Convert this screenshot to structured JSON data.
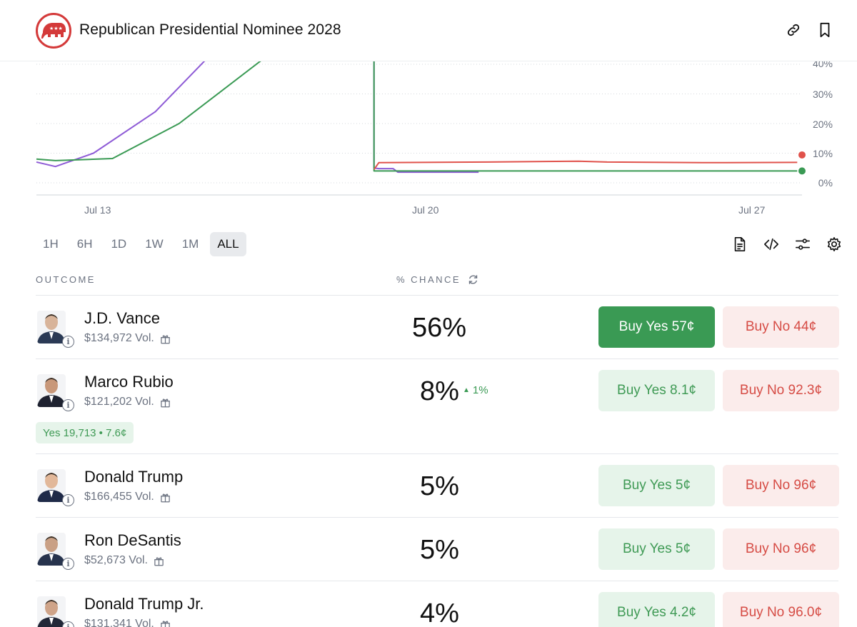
{
  "header": {
    "title": "Republican Presidential Nominee 2028",
    "logo_icon": "gop-elephant-icon",
    "actions": [
      "link-icon",
      "bookmark-icon"
    ]
  },
  "chart_data": {
    "type": "line",
    "y_tick_labels": [
      "40%",
      "30%",
      "20%",
      "10%",
      "0%"
    ],
    "x_tick_labels": [
      "Jul 13",
      "Jul 20",
      "Jul 27"
    ],
    "ylim": [
      0,
      45
    ],
    "grid": true,
    "series": [
      {
        "color": "#8e5bd6",
        "values": [
          [
            0,
            7
          ],
          [
            0.4,
            5.5
          ],
          [
            1.2,
            10
          ],
          [
            2.5,
            24
          ],
          [
            3.6,
            43
          ],
          [
            7.1,
            43
          ],
          [
            7.1,
            5
          ],
          [
            7.2,
            4.8
          ],
          [
            7.5,
            4.8
          ],
          [
            7.6,
            3.6
          ],
          [
            9.3,
            3.6
          ]
        ]
      },
      {
        "color": "#3a9a54",
        "values": [
          [
            0,
            8
          ],
          [
            0.4,
            7.5
          ],
          [
            1.6,
            8.2
          ],
          [
            3.0,
            20
          ],
          [
            4.8,
            43
          ],
          [
            7.1,
            43
          ],
          [
            7.1,
            4
          ],
          [
            16.0,
            4
          ]
        ]
      },
      {
        "color": "#e0524b",
        "values": [
          [
            7.1,
            4.5
          ],
          [
            7.2,
            6.8
          ],
          [
            9.5,
            7
          ],
          [
            11.4,
            7.3
          ],
          [
            12.0,
            7
          ],
          [
            14.0,
            6.8
          ],
          [
            16.0,
            6.9
          ]
        ]
      }
    ]
  },
  "ranges": [
    "1H",
    "6H",
    "1D",
    "1W",
    "1M",
    "ALL"
  ],
  "active_range": "ALL",
  "tools": [
    "document-icon",
    "code-icon",
    "sliders-icon",
    "gear-icon"
  ],
  "table": {
    "col_outcome": "OUTCOME",
    "col_chance": "% CHANCE"
  },
  "outcomes": [
    {
      "name": "J.D. Vance",
      "volume": "$134,972 Vol.",
      "chance": "56%",
      "yes": "Buy Yes 57¢",
      "no": "Buy No 44¢"
    },
    {
      "name": "Marco Rubio",
      "volume": "$121,202 Vol.",
      "chance": "8%",
      "delta": "1%",
      "yes": "Buy Yes 8.1¢",
      "no": "Buy No 92.3¢",
      "position": "Yes 19,713 • 7.6¢"
    },
    {
      "name": "Donald Trump",
      "volume": "$166,455 Vol.",
      "chance": "5%",
      "yes": "Buy Yes 5¢",
      "no": "Buy No 96¢"
    },
    {
      "name": "Ron DeSantis",
      "volume": "$52,673 Vol.",
      "chance": "5%",
      "yes": "Buy Yes 5¢",
      "no": "Buy No 96¢"
    },
    {
      "name": "Donald Trump Jr.",
      "volume": "$131,341 Vol.",
      "chance": "4%",
      "yes": "Buy Yes 4.2¢",
      "no": "Buy No 96.0¢"
    }
  ]
}
